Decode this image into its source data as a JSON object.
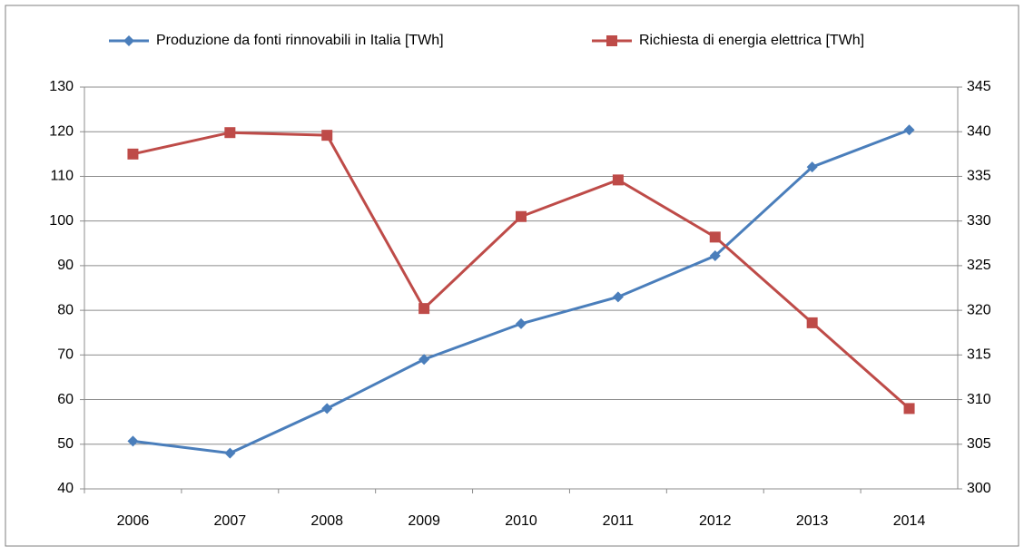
{
  "chart_data": {
    "type": "line",
    "categories": [
      "2006",
      "2007",
      "2008",
      "2009",
      "2010",
      "2011",
      "2012",
      "2013",
      "2014"
    ],
    "series": [
      {
        "name": "Produzione da fonti rinnovabili in Italia [TWh]",
        "color": "#4a7ebb",
        "marker": "diamond",
        "values": [
          50.7,
          48,
          58,
          69,
          77,
          83,
          92.2,
          112.1,
          120.4
        ]
      },
      {
        "name": "Richiesta di energia elettrica [TWh]",
        "color": "#be4b48",
        "marker": "square",
        "axis": "y2",
        "values": [
          337.5,
          339.9,
          339.6,
          320.2,
          330.5,
          334.6,
          328.2,
          318.6,
          309
        ]
      }
    ],
    "ylim": [
      40,
      130
    ],
    "yticks": [
      40,
      50,
      60,
      70,
      80,
      90,
      100,
      110,
      120,
      130
    ],
    "y2lim": [
      300,
      345
    ],
    "y2ticks": [
      300,
      305,
      310,
      315,
      320,
      325,
      330,
      335,
      340,
      345
    ],
    "grid": true,
    "legend": "top"
  }
}
